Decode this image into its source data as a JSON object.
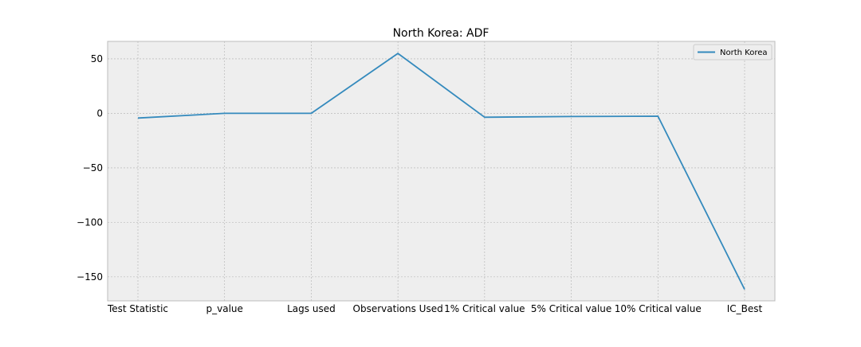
{
  "chart_data": {
    "type": "line",
    "title": "North Korea: ADF",
    "xlabel": "",
    "ylabel": "",
    "categories": [
      "Test Statistic",
      "p_value",
      "Lags used",
      "Observations Used",
      "1% Critical value",
      "5% Critical value",
      "10% Critical value",
      "IC_Best"
    ],
    "series": [
      {
        "name": "North Korea",
        "values": [
          -4.3,
          0.0,
          0.0,
          55.0,
          -3.6,
          -2.9,
          -2.6,
          -161.5
        ],
        "color": "#348abd"
      }
    ],
    "yticks": [
      50,
      0,
      -50,
      -100,
      -150
    ],
    "ytick_labels": [
      "50",
      "0",
      "−50",
      "−100",
      "−150"
    ],
    "ylim": [
      -172,
      66
    ],
    "grid": true,
    "legend": "top-right",
    "colors": {
      "plot_background": "#eeeeee",
      "grid": "#b0b0b0",
      "frame": "#bcbcbc"
    }
  }
}
